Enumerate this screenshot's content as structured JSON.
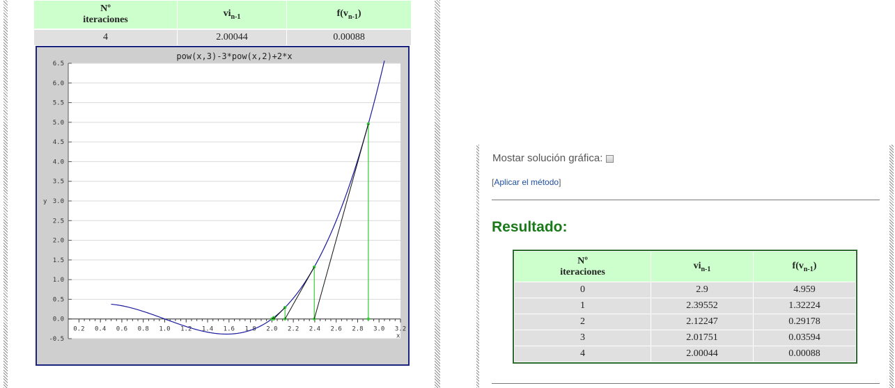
{
  "table_headers": {
    "n_line1": "Nº",
    "n_line2": "iteraciones",
    "vi_base": "vi",
    "vi_sub": "n-1",
    "f_base": "f(v",
    "f_sub": "n-1",
    "f_close": ")"
  },
  "top_table": {
    "rows": [
      {
        "n": "4",
        "vi": "2.00044",
        "f": "0.00088"
      }
    ]
  },
  "chart_data": {
    "type": "line",
    "title": "pow(x,3)-3*pow(x,2)+2*x",
    "xlabel": "x",
    "ylabel": "y",
    "xlim": [
      0.1,
      3.2
    ],
    "ylim": [
      -0.5,
      6.5
    ],
    "x_ticks": [
      "0.2",
      "0.4",
      "0.6",
      "0.8",
      "1.0",
      "1.2",
      "1.4",
      "1.6",
      "1.8",
      "2.0",
      "2.2",
      "2.4",
      "2.6",
      "2.8",
      "3.0",
      "3.2"
    ],
    "y_ticks": [
      "-0.5",
      "0.0",
      "0.5",
      "1.0",
      "1.5",
      "2.0",
      "2.5",
      "3.0",
      "3.5",
      "4.0",
      "4.5",
      "5.0",
      "5.5",
      "6.0",
      "6.5"
    ],
    "grid": true,
    "curve_range": [
      0.5,
      3.05
    ],
    "iterates": [
      {
        "x": 2.9,
        "fx": 4.959
      },
      {
        "x": 2.39552,
        "fx": 1.32224
      },
      {
        "x": 2.12247,
        "fx": 0.29178
      },
      {
        "x": 2.01751,
        "fx": 0.03594
      },
      {
        "x": 2.00044,
        "fx": 0.00088
      }
    ],
    "colors": {
      "curve": "#1a1a9e",
      "vertical": "#33cc33",
      "secant": "#111111"
    }
  },
  "options": {
    "mostrar_label": "Mostar solución gráfica:",
    "aplicar_open": "[",
    "aplicar_text": "Aplicar el método",
    "aplicar_close": "]"
  },
  "resultado_title": "Resultado:",
  "bottom_table": {
    "rows": [
      {
        "n": "0",
        "vi": "2.9",
        "f": "4.959"
      },
      {
        "n": "1",
        "vi": "2.39552",
        "f": "1.32224"
      },
      {
        "n": "2",
        "vi": "2.12247",
        "f": "0.29178"
      },
      {
        "n": "3",
        "vi": "2.01751",
        "f": "0.03594"
      },
      {
        "n": "4",
        "vi": "2.00044",
        "f": "0.00088"
      }
    ]
  }
}
